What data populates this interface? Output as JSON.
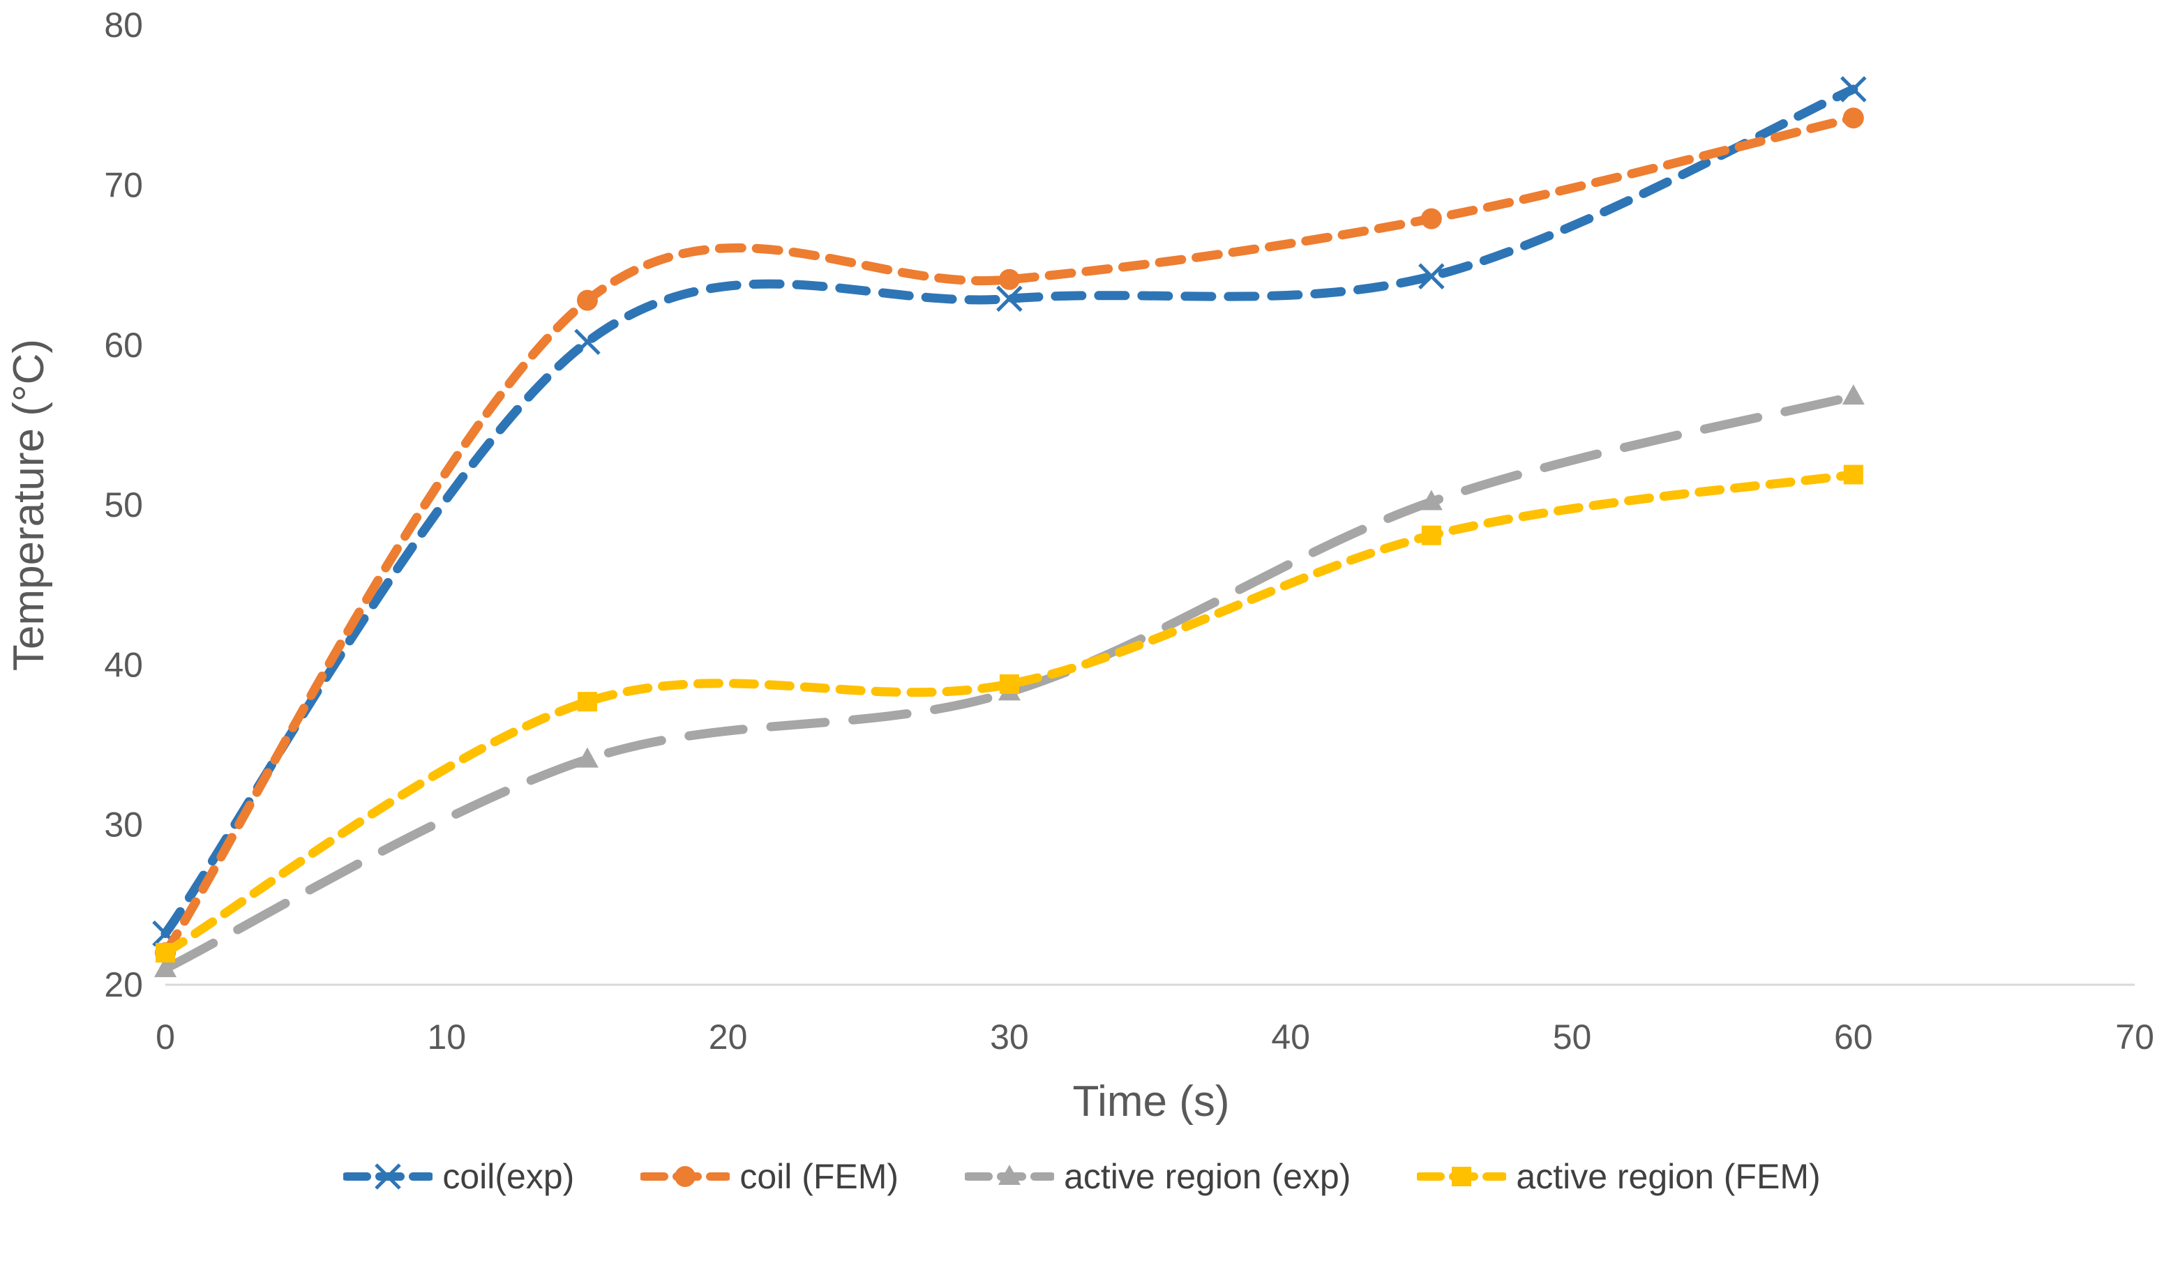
{
  "chart_data": {
    "type": "line",
    "title": "",
    "xlabel": "Time (s)",
    "ylabel": "Temperature (°C)",
    "xlim": [
      0,
      70
    ],
    "ylim": [
      20,
      80
    ],
    "x_ticks": [
      "0",
      "10",
      "20",
      "30",
      "40",
      "50",
      "60",
      "70"
    ],
    "y_ticks": [
      "20",
      "30",
      "40",
      "50",
      "60",
      "70",
      "80"
    ],
    "grid": false,
    "legend_position": "bottom",
    "x": [
      0,
      15,
      30,
      45,
      60
    ],
    "series": [
      {
        "name": "coil(exp)",
        "values": [
          23.2,
          60.2,
          62.9,
          64.3,
          76.0
        ],
        "color": "#2E75B6",
        "marker": "x",
        "dash": "38 24",
        "stroke_width": 13
      },
      {
        "name": "coil (FEM)",
        "values": [
          22.0,
          62.8,
          64.1,
          67.9,
          74.2
        ],
        "color": "#ED7D31",
        "marker": "circle",
        "dash": "32 21",
        "stroke_width": 13
      },
      {
        "name": "active region (exp)",
        "values": [
          21.0,
          34.1,
          38.3,
          50.2,
          56.8
        ],
        "color": "#A6A6A6",
        "marker": "triangle",
        "dash": "78 40",
        "stroke_width": 13
      },
      {
        "name": "active region (FEM)",
        "values": [
          22.0,
          37.7,
          38.8,
          48.1,
          51.9
        ],
        "color": "#FFC000",
        "marker": "square",
        "dash": "30 21",
        "stroke_width": 13
      }
    ],
    "colors": {
      "axis_line": "#D9D9D9",
      "tick_text": "#595959",
      "legend_text": "#404040",
      "background": "#FFFFFF"
    }
  }
}
